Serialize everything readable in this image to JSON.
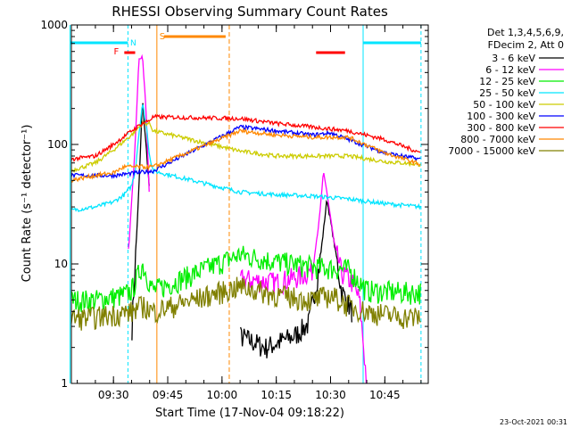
{
  "chart_data": {
    "type": "line",
    "title": "RHESSI Observing Summary Count Rates",
    "xlabel": "Start Time (17-Nov-04 09:18:22)",
    "ylabel": "Count Rate (s⁻¹ detector⁻¹)",
    "y_scale": "log",
    "ylim": [
      1,
      1000
    ],
    "xlim": [
      "09:18:22",
      "10:57:00"
    ],
    "x_ticks": [
      "09:30",
      "09:45",
      "10:00",
      "10:15",
      "10:30",
      "10:45"
    ],
    "y_ticks": [
      "1",
      "10",
      "100",
      "1000"
    ],
    "legend_header": [
      "Det 1,3,4,5,6,9,",
      "FDecim 2, Att 0"
    ],
    "legend_position": "right",
    "footer_date": "23-Oct-2021 00:31",
    "flags": {
      "F_label": "F",
      "N_label": "N",
      "S_label": "S",
      "F_bar": [
        "09:33",
        "09:36"
      ],
      "F_bar_late": [
        "10:26",
        "10:34"
      ],
      "S_bar": [
        "09:44",
        "10:01"
      ],
      "saa_start": "09:42",
      "saa_end": "10:02",
      "night_intervals": [
        [
          "09:18",
          "09:34"
        ],
        [
          "10:39",
          "10:55"
        ]
      ]
    },
    "data_gap": [
      "09:44",
      "10:05"
    ],
    "series": [
      {
        "name": "3 - 6 keV",
        "color": "#000000",
        "x": [
          "09:18",
          "09:25",
          "09:33",
          "09:35",
          "09:37",
          "09:38",
          "09:40",
          "09:41",
          "10:05",
          "10:12",
          "10:20",
          "10:24",
          "10:27",
          "10:29",
          "10:31",
          "10:33",
          "10:36",
          "10:39"
        ],
        "y": [
          null,
          null,
          null,
          2.5,
          40,
          240,
          40,
          null,
          2.5,
          2.0,
          2.5,
          3.2,
          10,
          35,
          15,
          6,
          4,
          null
        ]
      },
      {
        "name": "6 - 12 keV",
        "color": "#ff00ff",
        "x": [
          "09:18",
          "09:25",
          "09:30",
          "09:34",
          "09:36",
          "09:37",
          "09:38",
          "09:39",
          "09:40",
          "09:41",
          "10:05",
          "10:15",
          "10:22",
          "10:25",
          "10:27",
          "10:28",
          "10:29",
          "10:31",
          "10:33",
          "10:36",
          "10:38",
          "10:40"
        ],
        "y": [
          null,
          null,
          null,
          10,
          100,
          500,
          550,
          200,
          30,
          null,
          7.5,
          7.0,
          8.0,
          9.0,
          25,
          58,
          40,
          15,
          8.5,
          7.0,
          5.0,
          1.0
        ]
      },
      {
        "name": "12 - 25 keV",
        "color": "#00ee00",
        "x": [
          "09:18",
          "09:25",
          "09:33",
          "09:35",
          "09:36",
          "09:38",
          "09:40",
          "09:41",
          "10:05",
          "10:15",
          "10:25",
          "10:35",
          "10:40",
          "10:50",
          "10:55"
        ],
        "y": [
          5.0,
          5.0,
          5.5,
          6.0,
          7.0,
          10,
          7.0,
          6.0,
          12,
          10.5,
          9.5,
          9.0,
          6.0,
          5.8,
          5.8
        ]
      },
      {
        "name": "25 - 50 keV",
        "color": "#00e5ff",
        "x": [
          "09:18",
          "09:25",
          "09:30",
          "09:33",
          "09:35",
          "09:36",
          "09:37",
          "09:38",
          "09:39",
          "09:40",
          "09:41",
          "10:05",
          "10:15",
          "10:25",
          "10:35",
          "10:45",
          "10:55"
        ],
        "y": [
          28,
          30,
          33,
          38,
          45,
          60,
          120,
          220,
          150,
          80,
          60,
          40,
          38,
          37,
          35,
          32,
          30
        ]
      },
      {
        "name": "50 - 100 keV",
        "color": "#cccc00",
        "x": [
          "09:18",
          "09:25",
          "09:30",
          "09:35",
          "09:38",
          "09:40",
          "09:41",
          "10:05",
          "10:15",
          "10:25",
          "10:35",
          "10:45",
          "10:55"
        ],
        "y": [
          60,
          70,
          90,
          120,
          150,
          150,
          130,
          88,
          80,
          80,
          80,
          72,
          68
        ]
      },
      {
        "name": "100 - 300 keV",
        "color": "#0000ff",
        "x": [
          "09:18",
          "09:25",
          "09:30",
          "09:41",
          "10:05",
          "10:15",
          "10:25",
          "10:30",
          "10:35",
          "10:45",
          "10:55"
        ],
        "y": [
          55,
          55,
          55,
          60,
          140,
          130,
          120,
          125,
          110,
          85,
          75
        ]
      },
      {
        "name": "300 - 800 keV",
        "color": "#ff0000",
        "x": [
          "09:18",
          "09:25",
          "09:30",
          "09:35",
          "09:38",
          "09:40",
          "09:41",
          "10:05",
          "10:15",
          "10:25",
          "10:35",
          "10:45",
          "10:55"
        ],
        "y": [
          75,
          80,
          100,
          130,
          150,
          160,
          170,
          165,
          150,
          140,
          130,
          110,
          85
        ]
      },
      {
        "name": "800 - 7000 keV",
        "color": "#ff8800",
        "x": [
          "09:18",
          "09:25",
          "09:30",
          "09:33",
          "09:41",
          "10:05",
          "10:15",
          "10:25",
          "10:35",
          "10:45",
          "10:55"
        ],
        "y": [
          50,
          55,
          58,
          65,
          65,
          130,
          120,
          115,
          115,
          85,
          68
        ]
      },
      {
        "name": "7000 - 15000 keV",
        "color": "#808000",
        "x": [
          "09:18",
          "09:25",
          "09:30",
          "09:35",
          "09:38",
          "09:41",
          "10:05",
          "10:15",
          "10:25",
          "10:30",
          "10:35",
          "10:40",
          "10:50",
          "10:55"
        ],
        "y": [
          3.5,
          3.6,
          3.8,
          4.0,
          4.5,
          4.0,
          6.5,
          5.5,
          5.0,
          5.5,
          4.5,
          4.0,
          3.6,
          3.6
        ]
      }
    ]
  }
}
